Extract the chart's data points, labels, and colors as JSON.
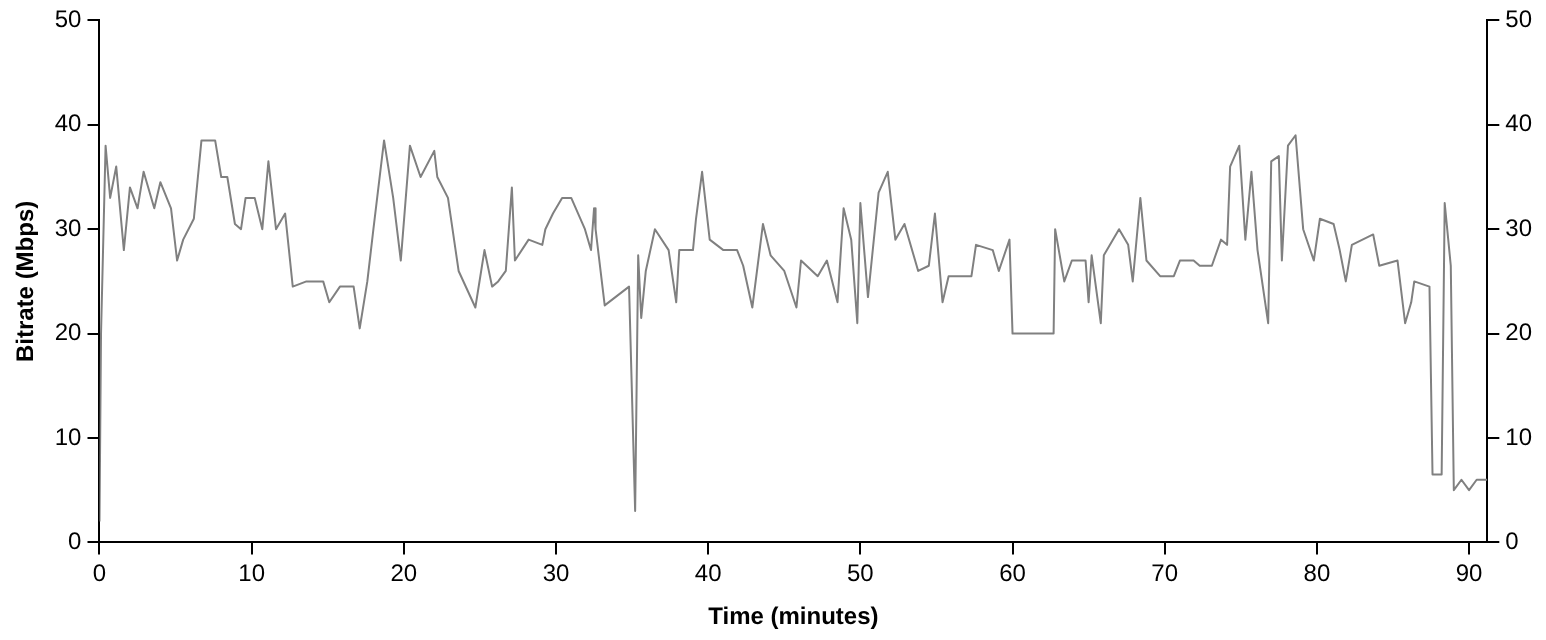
{
  "chart_data": {
    "type": "line",
    "xlabel": "Time (minutes)",
    "ylabel": "Bitrate (Mbps)",
    "xlim": [
      0,
      91.2
    ],
    "xticks": [
      0,
      10,
      20,
      30,
      40,
      50,
      60,
      70,
      80,
      90
    ],
    "ylim": [
      0,
      50
    ],
    "yticks": [
      0,
      10,
      20,
      30,
      40,
      50
    ],
    "y2lim": [
      0,
      50
    ],
    "y2ticks": [
      0,
      10,
      20,
      30,
      40,
      50
    ],
    "grid": false,
    "legend": false,
    "marker": "none",
    "line_style": "solid",
    "series": [
      {
        "color": "#808080",
        "x": [
          0,
          0.1,
          0.4,
          0.7,
          1.1,
          1.6,
          2.0,
          2.5,
          2.9,
          3.6,
          4.0,
          4.7,
          5.1,
          5.5,
          6.2,
          6.7,
          7.6,
          8.0,
          8.4,
          8.9,
          9.3,
          9.6,
          10.2,
          10.7,
          11.1,
          11.6,
          12.2,
          12.7,
          13.6,
          14.7,
          15.1,
          15.8,
          16.7,
          17.1,
          17.6,
          18.0,
          18.7,
          19.3,
          19.8,
          20.4,
          21.1,
          22.0,
          22.2,
          22.9,
          23.6,
          24.7,
          25.3,
          25.8,
          26.2,
          26.7,
          27.1,
          27.3,
          28.2,
          29.1,
          29.3,
          29.8,
          30.4,
          31.0,
          31.9,
          32.3,
          32.5,
          32.6,
          33.2,
          34.8,
          35.2,
          35.4,
          35.6,
          35.9,
          36.5,
          37.4,
          37.9,
          38.1,
          39.0,
          39.2,
          39.6,
          40.1,
          41.0,
          41.9,
          42.3,
          42.9,
          43.6,
          44.1,
          45.0,
          45.8,
          46.1,
          47.2,
          47.8,
          48.5,
          48.9,
          49.4,
          49.8,
          50.0,
          50.5,
          51.2,
          51.8,
          52.3,
          52.9,
          53.8,
          54.5,
          54.9,
          55.4,
          55.8,
          57.3,
          57.6,
          58.7,
          59.1,
          59.8,
          60.0,
          62.7,
          62.8,
          63.4,
          63.9,
          64.8,
          65.0,
          65.2,
          65.8,
          66.0,
          67.0,
          67.6,
          67.9,
          68.4,
          68.8,
          69.7,
          70.6,
          71.0,
          71.9,
          72.3,
          73.1,
          73.7,
          74.1,
          74.3,
          74.9,
          75.3,
          75.7,
          76.1,
          76.8,
          77.0,
          77.5,
          77.7,
          78.1,
          78.6,
          79.1,
          79.8,
          80.2,
          81.1,
          81.5,
          81.9,
          82.3,
          83.7,
          84.1,
          85.3,
          85.8,
          86.2,
          86.4,
          87.4,
          87.6,
          88.2,
          88.4,
          88.8,
          89.0,
          89.5,
          90.0,
          90.5,
          91.2
        ],
        "values": [
          2,
          20,
          38,
          33,
          36,
          28,
          34,
          32,
          35.5,
          32,
          34.5,
          32,
          27,
          29,
          31,
          38.5,
          38.5,
          35,
          35,
          30.5,
          30,
          33,
          33,
          30,
          36.5,
          30,
          31.5,
          24.5,
          25,
          25,
          23,
          24.5,
          24.5,
          20.5,
          25,
          30,
          38.5,
          33,
          27,
          38,
          35,
          37.5,
          35,
          33,
          26,
          22.5,
          28,
          24.5,
          25,
          26,
          34,
          27,
          29,
          28.5,
          30,
          31.5,
          33,
          33,
          30,
          28,
          32,
          30,
          22.7,
          24.5,
          3,
          27.5,
          21.5,
          26,
          30,
          28,
          23,
          28,
          28,
          31,
          35.5,
          29,
          28,
          28,
          26.5,
          22.5,
          30.5,
          27.5,
          26,
          22.5,
          27,
          25.5,
          27,
          23,
          32,
          29,
          21,
          32.5,
          23.5,
          33.5,
          35.5,
          29,
          30.5,
          26,
          26.5,
          31.5,
          23,
          25.5,
          25.5,
          28.5,
          28,
          26,
          29,
          20,
          20,
          30,
          25,
          27,
          27,
          23,
          27.5,
          21,
          27.5,
          30,
          28.5,
          25,
          33,
          27,
          25.5,
          25.5,
          27,
          27,
          26.5,
          26.5,
          29,
          28.5,
          36,
          38,
          29,
          35.5,
          28,
          21,
          36.5,
          37,
          27,
          38,
          39,
          30,
          27,
          31,
          30.5,
          28,
          25,
          28.5,
          29.5,
          26.5,
          27,
          21,
          23,
          25,
          24.5,
          6.5,
          6.5,
          32.5,
          26.5,
          5,
          6,
          5,
          6,
          6
        ]
      }
    ]
  }
}
